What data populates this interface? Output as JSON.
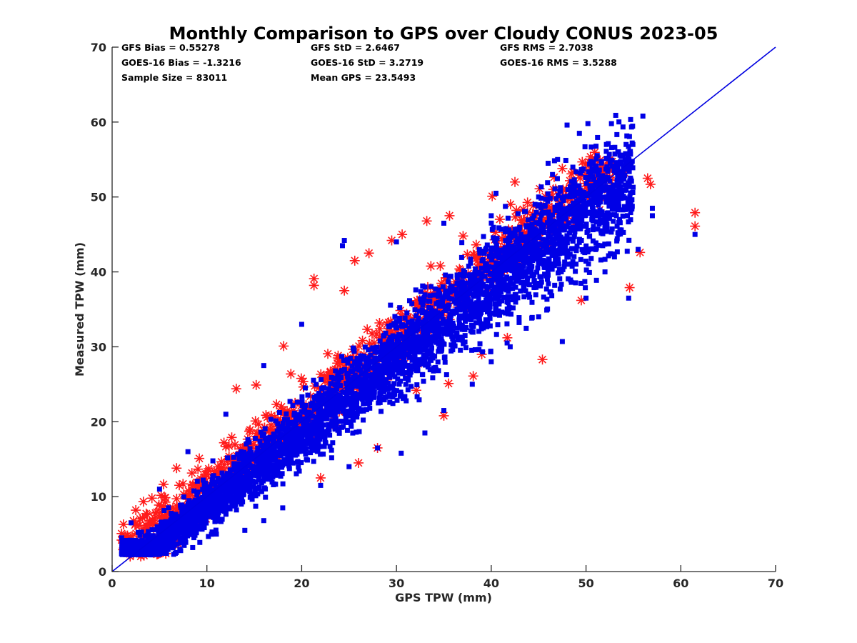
{
  "chart_data": {
    "type": "scatter",
    "title": "Monthly Comparison to GPS over Cloudy CONUS 2023-05",
    "xlabel": "GPS TPW (mm)",
    "ylabel": "Measured TPW (mm)",
    "xlim": [
      0,
      70
    ],
    "ylim": [
      0,
      70
    ],
    "xticks": [
      "0",
      "10",
      "20",
      "30",
      "40",
      "50",
      "60",
      "70"
    ],
    "yticks": [
      "0",
      "10",
      "20",
      "30",
      "40",
      "50",
      "60",
      "70"
    ],
    "grid": false,
    "stats": [
      "GFS Bias = 0.55278",
      "GFS StD = 2.6467",
      "GFS RMS = 2.7038",
      "GOES-16 Bias = -1.3216",
      "GOES-16 StD = 3.2719",
      "GOES-16 RMS = 3.5288",
      "Sample Size = 83011",
      "Mean GPS = 23.5493"
    ],
    "reference_line": {
      "x": [
        0,
        70
      ],
      "y": [
        0,
        70
      ],
      "color": "#0000e0"
    },
    "series": [
      {
        "marker": "asterisk",
        "color": "#ff1a1a",
        "note_points": [
          [
            1,
            4.2
          ],
          [
            1.2,
            6.3
          ],
          [
            2.5,
            8.2
          ],
          [
            4.2,
            9.8
          ],
          [
            6.8,
            13.8
          ],
          [
            9.2,
            15.1
          ],
          [
            11.8,
            17.2
          ],
          [
            13.1,
            24.4
          ],
          [
            15.2,
            24.9
          ],
          [
            18.1,
            30.1
          ],
          [
            21.3,
            39.1
          ],
          [
            21.3,
            38.2
          ],
          [
            24.5,
            37.5
          ],
          [
            25.6,
            41.5
          ],
          [
            27.1,
            42.5
          ],
          [
            29.5,
            44.2
          ],
          [
            30.6,
            45.0
          ],
          [
            33.2,
            46.8
          ],
          [
            35.6,
            47.5
          ],
          [
            40.1,
            50.1
          ],
          [
            42.5,
            52.0
          ],
          [
            45.1,
            51.1
          ],
          [
            47.5,
            53.8
          ],
          [
            52.8,
            53.6
          ],
          [
            54.1,
            53.2
          ],
          [
            56.5,
            52.5
          ],
          [
            56.8,
            51.7
          ],
          [
            61.5,
            47.9
          ],
          [
            61.5,
            46.1
          ],
          [
            55.7,
            42.6
          ],
          [
            54.6,
            37.9
          ],
          [
            49.5,
            36.2
          ],
          [
            45.4,
            28.3
          ],
          [
            41.7,
            31.2
          ],
          [
            38.1,
            26.1
          ],
          [
            32.1,
            24.2
          ],
          [
            35.5,
            25.1
          ],
          [
            39.0,
            29.0
          ],
          [
            35.0,
            20.8
          ],
          [
            26.0,
            14.5
          ],
          [
            28.0,
            16.5
          ],
          [
            22.0,
            12.5
          ]
        ]
      },
      {
        "marker": "square",
        "color": "#0000e6",
        "note_points": [
          [
            2,
            3.5
          ],
          [
            4,
            2.8
          ],
          [
            6.5,
            2.3
          ],
          [
            8.5,
            3.2
          ],
          [
            11,
            5.0
          ],
          [
            14,
            5.5
          ],
          [
            16,
            6.8
          ],
          [
            18,
            8.5
          ],
          [
            22,
            11.5
          ],
          [
            25,
            14.0
          ],
          [
            28,
            16.5
          ],
          [
            30.5,
            15.8
          ],
          [
            33,
            18.5
          ],
          [
            35,
            21.5
          ],
          [
            38,
            25.0
          ],
          [
            40,
            28.0
          ],
          [
            42,
            30.0
          ],
          [
            45,
            34.0
          ],
          [
            47.5,
            30.7
          ],
          [
            50,
            36.5
          ],
          [
            52,
            40.0
          ],
          [
            53,
            42.0
          ],
          [
            54.5,
            36.5
          ],
          [
            55.5,
            43.0
          ],
          [
            57,
            48.5
          ],
          [
            57,
            47.5
          ],
          [
            61.5,
            45.0
          ],
          [
            56,
            60.8
          ],
          [
            50.2,
            59.8
          ],
          [
            49.3,
            58.5
          ],
          [
            48,
            59.6
          ],
          [
            47,
            55.0
          ],
          [
            46,
            54.5
          ],
          [
            51,
            54.0
          ],
          [
            48.5,
            50.5
          ],
          [
            45,
            50.0
          ],
          [
            40,
            47.5
          ],
          [
            40.5,
            50.5
          ],
          [
            35,
            46.5
          ],
          [
            30,
            44.0
          ],
          [
            24.5,
            44.2
          ],
          [
            24.3,
            43.5
          ],
          [
            20,
            33.0
          ],
          [
            16,
            27.5
          ],
          [
            12,
            21.0
          ],
          [
            8,
            16.0
          ],
          [
            5,
            11.0
          ],
          [
            2,
            6.5
          ],
          [
            1,
            4.5
          ]
        ]
      }
    ]
  }
}
